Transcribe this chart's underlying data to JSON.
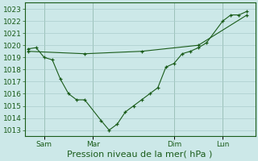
{
  "background_color": "#cce8e8",
  "grid_color": "#aacccc",
  "line_color": "#1a5c1a",
  "marker_color": "#1a5c1a",
  "xlabel": "Pression niveau de la mer( hPa )",
  "ylim": [
    1012.5,
    1023.5
  ],
  "yticks": [
    1013,
    1014,
    1015,
    1016,
    1017,
    1018,
    1019,
    1020,
    1021,
    1022,
    1023
  ],
  "xtick_labels": [
    "Sam",
    "Mar",
    "Dim",
    "Lun"
  ],
  "xtick_positions": [
    1,
    4,
    9,
    12
  ],
  "num_days": 14,
  "line1_x": [
    0,
    0.5,
    1.0,
    1.5,
    2.0,
    2.5,
    3.0,
    3.5,
    4.5,
    5.0,
    5.5,
    6.0,
    6.5,
    7.0,
    7.5,
    8.0,
    8.5,
    9.0,
    9.5,
    10.0,
    10.5,
    11.0,
    12.0,
    12.5,
    13.0,
    13.5
  ],
  "line1_y": [
    1019.7,
    1019.8,
    1019.0,
    1018.8,
    1017.2,
    1016.0,
    1015.5,
    1015.5,
    1013.8,
    1013.0,
    1013.5,
    1014.5,
    1015.0,
    1015.5,
    1016.0,
    1016.5,
    1018.2,
    1018.5,
    1019.3,
    1019.5,
    1019.8,
    1020.2,
    1022.0,
    1022.5,
    1022.5,
    1022.8
  ],
  "line2_x": [
    0,
    3.5,
    7.0,
    10.5,
    13.5
  ],
  "line2_y": [
    1019.5,
    1019.3,
    1019.5,
    1020.0,
    1022.5
  ],
  "vline_positions": [
    1,
    4,
    9,
    12
  ],
  "tick_fontsize": 6.5,
  "xlabel_fontsize": 8.0
}
